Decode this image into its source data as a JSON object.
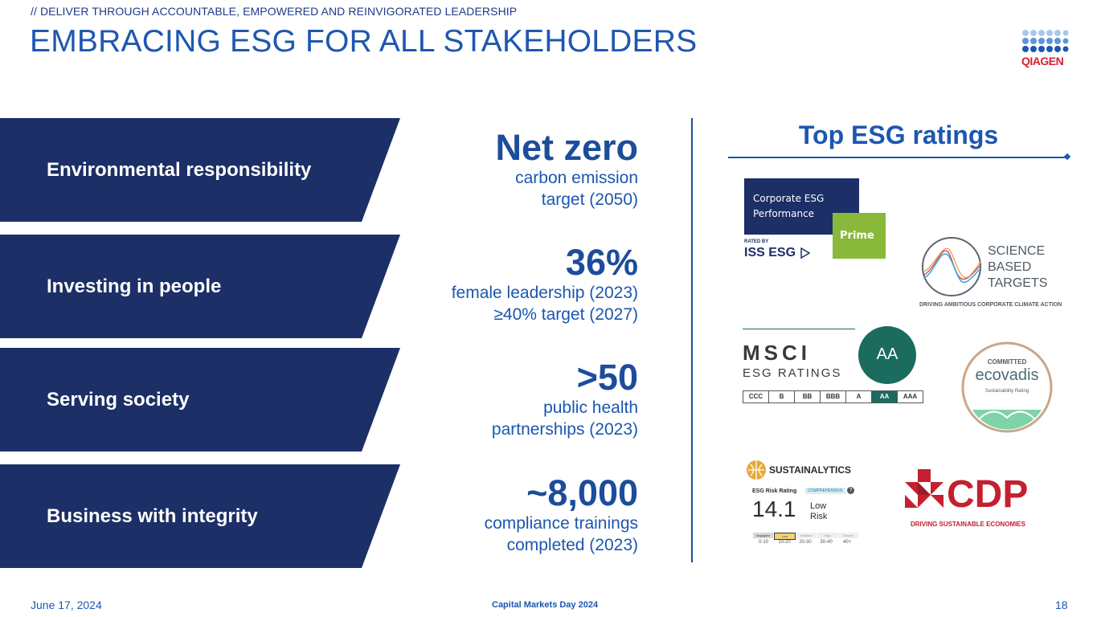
{
  "header": {
    "supertitle": "// DELIVER THROUGH ACCOUNTABLE, EMPOWERED AND REINVIGORATED LEADERSHIP",
    "title": "EMBRACING ESG FOR ALL STAKEHOLDERS",
    "logo_text": "QIAGEN"
  },
  "pillars": [
    {
      "label": "Environmental responsibility"
    },
    {
      "label": "Investing in people"
    },
    {
      "label": "Serving society"
    },
    {
      "label": "Business with integrity"
    }
  ],
  "stats": [
    {
      "value": "Net zero",
      "line1": "carbon emission",
      "line2": "target (2050)"
    },
    {
      "value": "36%",
      "line1": "female leadership (2023)",
      "line2": "≥40% target (2027)"
    },
    {
      "value": ">50",
      "line1": "public health",
      "line2": "partnerships (2023)"
    },
    {
      "value": "~8,000",
      "line1": "compliance trainings",
      "line2": "completed (2023)"
    }
  ],
  "ratings": {
    "title": "Top ESG ratings",
    "iss": {
      "line1": "Corporate ESG",
      "line2": "Performance",
      "badge": "Prime",
      "rated_by": "RATED BY",
      "brand": "ISS ESG"
    },
    "sbt": {
      "line1": "SCIENCE",
      "line2": "BASED",
      "line3": "TARGETS",
      "tagline": "DRIVING AMBITIOUS CORPORATE CLIMATE ACTION"
    },
    "msci": {
      "brand": "MSCI",
      "sub": "ESG RATINGS",
      "grade": "AA",
      "scale": [
        "CCC",
        "B",
        "BB",
        "BBB",
        "A",
        "AA",
        "AAA"
      ]
    },
    "ecovadis": {
      "top": "COMMITTED",
      "brand": "ecovadis",
      "sub": "Sustainability Rating"
    },
    "sustainalytics": {
      "brand": "SUSTAINALYTICS",
      "label": "ESG Risk Rating",
      "tag": "COMPREHENSIVE",
      "score": "14.1",
      "risk1": "Low",
      "risk2": "Risk",
      "bands": [
        "Negligible",
        "Low",
        "Medium",
        "High",
        "Severe"
      ],
      "ranges": [
        "0-10",
        "10-20",
        "20-30",
        "30-40",
        "40+"
      ]
    },
    "cdp": {
      "brand": "CDP",
      "tagline": "DRIVING SUSTAINABLE ECONOMIES"
    }
  },
  "footer": {
    "date": "June 17, 2024",
    "event": "Capital Markets Day 2024",
    "page": "18"
  },
  "colors": {
    "navy": "#1c2f66",
    "blue": "#1c57b0",
    "green_iss": "#8ab83a",
    "msci_teal": "#1b6b5f",
    "cdp_red": "#c4202f"
  }
}
